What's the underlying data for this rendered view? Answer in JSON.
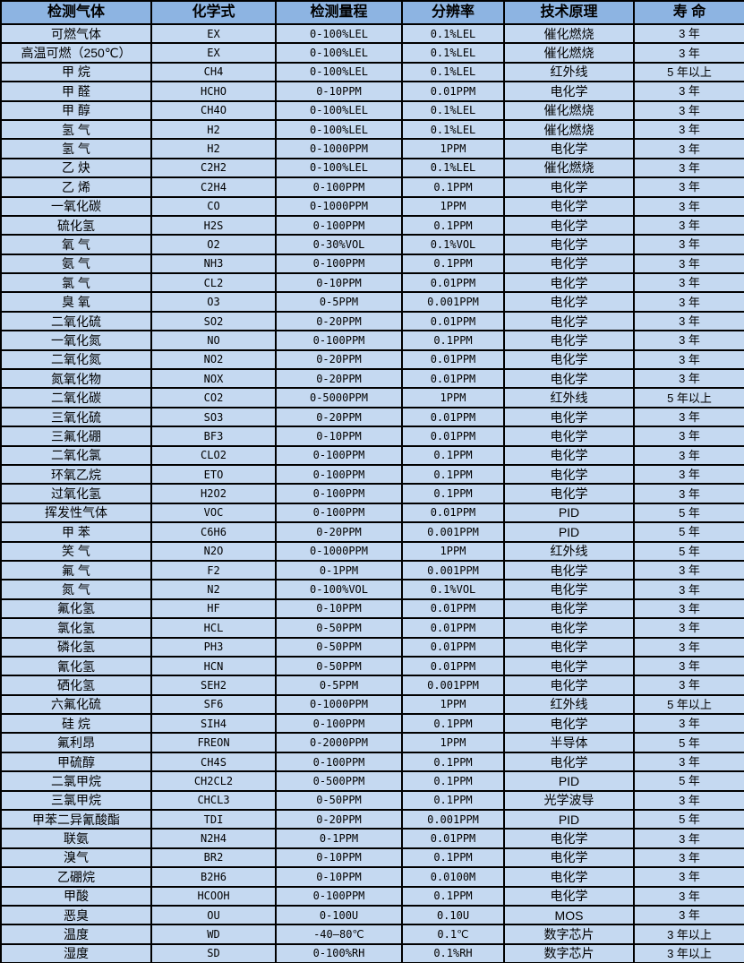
{
  "table": {
    "colors": {
      "header_bg": "#8DB4E2",
      "row_bg": "#C5D9F1",
      "border": "#000000",
      "text": "#000000"
    },
    "headers": [
      "检测气体",
      "化学式",
      "检测量程",
      "分辨率",
      "技术原理",
      "寿 命"
    ],
    "rows": [
      {
        "gas": "可燃气体",
        "formula": "EX",
        "range": "0-100%LEL",
        "resolution": "0.1%LEL",
        "principle": "催化燃烧",
        "life": "3 年"
      },
      {
        "gas": "高温可燃（250℃）",
        "formula": "EX",
        "range": "0-100%LEL",
        "resolution": "0.1%LEL",
        "principle": "催化燃烧",
        "life": "3 年"
      },
      {
        "gas": "甲 烷",
        "formula": "CH4",
        "range": "0-100%LEL",
        "resolution": "0.1%LEL",
        "principle": "红外线",
        "life": "5 年以上"
      },
      {
        "gas": "甲 醛",
        "formula": "HCHO",
        "range": "0-10PPM",
        "resolution": "0.01PPM",
        "principle": "电化学",
        "life": "3 年"
      },
      {
        "gas": "甲 醇",
        "formula": "CH4O",
        "range": "0-100%LEL",
        "resolution": "0.1%LEL",
        "principle": "催化燃烧",
        "life": "3 年"
      },
      {
        "gas": "氢 气",
        "formula": "H2",
        "range": "0-100%LEL",
        "resolution": "0.1%LEL",
        "principle": "催化燃烧",
        "life": "3 年"
      },
      {
        "gas": "氢 气",
        "formula": "H2",
        "range": "0-1000PPM",
        "resolution": "1PPM",
        "principle": "电化学",
        "life": "3 年"
      },
      {
        "gas": "乙 炔",
        "formula": "C2H2",
        "range": "0-100%LEL",
        "resolution": "0.1%LEL",
        "principle": "催化燃烧",
        "life": "3 年"
      },
      {
        "gas": "乙 烯",
        "formula": "C2H4",
        "range": "0-100PPM",
        "resolution": "0.1PPM",
        "principle": "电化学",
        "life": "3 年"
      },
      {
        "gas": "一氧化碳",
        "formula": "CO",
        "range": "0-1000PPM",
        "resolution": "1PPM",
        "principle": "电化学",
        "life": "3 年"
      },
      {
        "gas": "硫化氢",
        "formula": "H2S",
        "range": "0-100PPM",
        "resolution": "0.1PPM",
        "principle": "电化学",
        "life": "3 年"
      },
      {
        "gas": "氧 气",
        "formula": "O2",
        "range": "0-30%VOL",
        "resolution": "0.1%VOL",
        "principle": "电化学",
        "life": "3 年"
      },
      {
        "gas": "氨 气",
        "formula": "NH3",
        "range": "0-100PPM",
        "resolution": "0.1PPM",
        "principle": "电化学",
        "life": "3 年"
      },
      {
        "gas": "氯 气",
        "formula": "CL2",
        "range": "0-10PPM",
        "resolution": "0.01PPM",
        "principle": "电化学",
        "life": "3 年"
      },
      {
        "gas": "臭 氧",
        "formula": "O3",
        "range": "0-5PPM",
        "resolution": "0.001PPM",
        "principle": "电化学",
        "life": "3 年"
      },
      {
        "gas": "二氧化硫",
        "formula": "SO2",
        "range": "0-20PPM",
        "resolution": "0.01PPM",
        "principle": "电化学",
        "life": "3 年"
      },
      {
        "gas": "一氧化氮",
        "formula": "NO",
        "range": "0-100PPM",
        "resolution": "0.1PPM",
        "principle": "电化学",
        "life": "3 年"
      },
      {
        "gas": "二氧化氮",
        "formula": "NO2",
        "range": "0-20PPM",
        "resolution": "0.01PPM",
        "principle": "电化学",
        "life": "3 年"
      },
      {
        "gas": "氮氧化物",
        "formula": "NOX",
        "range": "0-20PPM",
        "resolution": "0.01PPM",
        "principle": "电化学",
        "life": "3 年"
      },
      {
        "gas": "二氧化碳",
        "formula": "CO2",
        "range": "0-5000PPM",
        "resolution": "1PPM",
        "principle": "红外线",
        "life": "5 年以上"
      },
      {
        "gas": "三氧化硫",
        "formula": "SO3",
        "range": "0-20PPM",
        "resolution": "0.01PPM",
        "principle": "电化学",
        "life": "3 年"
      },
      {
        "gas": "三氟化硼",
        "formula": "BF3",
        "range": "0-10PPM",
        "resolution": "0.01PPM",
        "principle": "电化学",
        "life": "3 年"
      },
      {
        "gas": "二氧化氯",
        "formula": "CLO2",
        "range": "0-100PPM",
        "resolution": "0.1PPM",
        "principle": "电化学",
        "life": "3 年"
      },
      {
        "gas": "环氧乙烷",
        "formula": "ETO",
        "range": "0-100PPM",
        "resolution": "0.1PPM",
        "principle": "电化学",
        "life": "3 年"
      },
      {
        "gas": "过氧化氢",
        "formula": "H2O2",
        "range": "0-100PPM",
        "resolution": "0.1PPM",
        "principle": "电化学",
        "life": "3 年"
      },
      {
        "gas": "挥发性气体",
        "formula": "VOC",
        "range": "0-100PPM",
        "resolution": "0.01PPM",
        "principle": "PID",
        "life": "5 年"
      },
      {
        "gas": "甲 苯",
        "formula": "C6H6",
        "range": "0-20PPM",
        "resolution": "0.001PPM",
        "principle": "PID",
        "life": "5 年"
      },
      {
        "gas": "笑 气",
        "formula": "N2O",
        "range": "0-1000PPM",
        "resolution": "1PPM",
        "principle": "红外线",
        "life": "5 年"
      },
      {
        "gas": "氟 气",
        "formula": "F2",
        "range": "0-1PPM",
        "resolution": "0.001PPM",
        "principle": "电化学",
        "life": "3 年"
      },
      {
        "gas": "氮 气",
        "formula": "N2",
        "range": "0-100%VOL",
        "resolution": "0.1%VOL",
        "principle": "电化学",
        "life": "3 年"
      },
      {
        "gas": "氟化氢",
        "formula": "HF",
        "range": "0-10PPM",
        "resolution": "0.01PPM",
        "principle": "电化学",
        "life": "3 年"
      },
      {
        "gas": "氯化氢",
        "formula": "HCL",
        "range": "0-50PPM",
        "resolution": "0.01PPM",
        "principle": "电化学",
        "life": "3 年"
      },
      {
        "gas": "磷化氢",
        "formula": "PH3",
        "range": "0-50PPM",
        "resolution": "0.01PPM",
        "principle": "电化学",
        "life": "3 年"
      },
      {
        "gas": "氰化氢",
        "formula": "HCN",
        "range": "0-50PPM",
        "resolution": "0.01PPM",
        "principle": "电化学",
        "life": "3 年"
      },
      {
        "gas": "硒化氢",
        "formula": "SEH2",
        "range": "0-5PPM",
        "resolution": "0.001PPM",
        "principle": "电化学",
        "life": "3 年"
      },
      {
        "gas": "六氟化硫",
        "formula": "SF6",
        "range": "0-1000PPM",
        "resolution": "1PPM",
        "principle": "红外线",
        "life": "5 年以上"
      },
      {
        "gas": "硅 烷",
        "formula": "SIH4",
        "range": "0-100PPM",
        "resolution": "0.1PPM",
        "principle": "电化学",
        "life": "3 年"
      },
      {
        "gas": "氟利昂",
        "formula": "FREON",
        "range": "0-2000PPM",
        "resolution": "1PPM",
        "principle": "半导体",
        "life": "5 年"
      },
      {
        "gas": "甲硫醇",
        "formula": "CH4S",
        "range": "0-100PPM",
        "resolution": "0.1PPM",
        "principle": "电化学",
        "life": "3 年"
      },
      {
        "gas": "二氯甲烷",
        "formula": "CH2CL2",
        "range": "0-500PPM",
        "resolution": "0.1PPM",
        "principle": "PID",
        "life": "5 年"
      },
      {
        "gas": "三氯甲烷",
        "formula": "CHCL3",
        "range": "0-50PPM",
        "resolution": "0.1PPM",
        "principle": "光学波导",
        "life": "3 年"
      },
      {
        "gas": "甲苯二异氰酸酯",
        "formula": "TDI",
        "range": "0-20PPM",
        "resolution": "0.001PPM",
        "principle": "PID",
        "life": "5 年"
      },
      {
        "gas": "联氨",
        "formula": "N2H4",
        "range": "0-1PPM",
        "resolution": "0.01PPM",
        "principle": "电化学",
        "life": "3 年"
      },
      {
        "gas": "溴气",
        "formula": "BR2",
        "range": "0-10PPM",
        "resolution": "0.1PPM",
        "principle": "电化学",
        "life": "3 年"
      },
      {
        "gas": "乙硼烷",
        "formula": "B2H6",
        "range": "0-10PPM",
        "resolution": "0.0100M",
        "principle": "电化学",
        "life": "3 年"
      },
      {
        "gas": "甲酸",
        "formula": "HCOOH",
        "range": "0-100PPM",
        "resolution": "0.1PPM",
        "principle": "电化学",
        "life": "3 年"
      },
      {
        "gas": "恶臭",
        "formula": "OU",
        "range": "0-100U",
        "resolution": "0.10U",
        "principle": "MOS",
        "life": "3 年"
      },
      {
        "gas": "温度",
        "formula": "WD",
        "range": "-40—80℃",
        "resolution": "0.1℃",
        "principle": "数字芯片",
        "life": "3 年以上"
      },
      {
        "gas": "湿度",
        "formula": "SD",
        "range": "0-100%RH",
        "resolution": "0.1%RH",
        "principle": "数字芯片",
        "life": "3 年以上"
      }
    ]
  }
}
